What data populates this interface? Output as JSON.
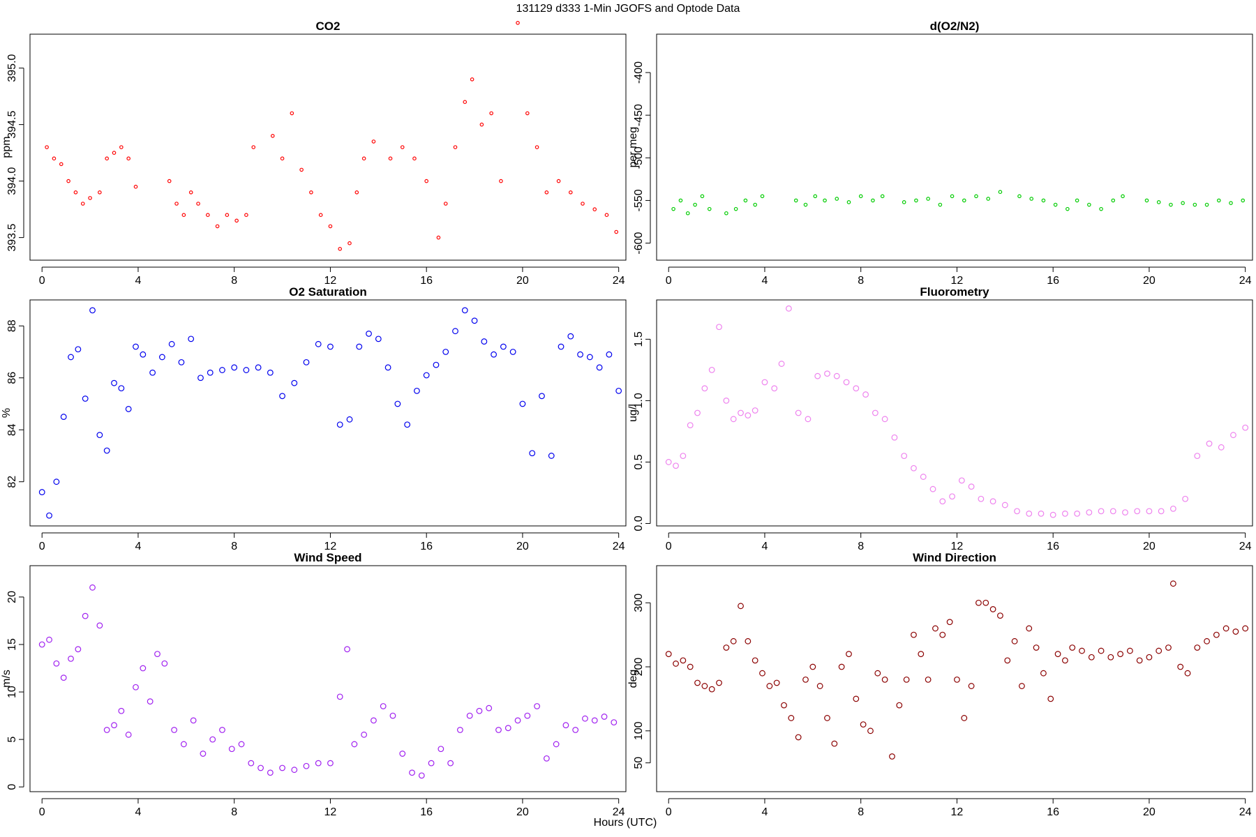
{
  "figure": {
    "title": "131129   d333   1-Min  JGOFS and Optode Data",
    "x_axis_title": "Hours (UTC)"
  },
  "chart_data": [
    {
      "type": "scatter",
      "title": "CO2",
      "xlabel": "",
      "ylabel": "ppm",
      "color": "#ff0000",
      "marker": "small-circle",
      "xlim": [
        -0.5,
        24.3
      ],
      "ylim": [
        393.3,
        395.3
      ],
      "xticks": [
        0,
        4,
        8,
        12,
        16,
        20,
        24
      ],
      "yticks": [
        393.5,
        394.0,
        394.5,
        395.0
      ],
      "ytick_labels": [
        "393.5",
        "394.0",
        "394.5",
        "395.0"
      ],
      "series": [
        {
          "name": "CO2",
          "x": [
            0.2,
            0.5,
            0.8,
            1.1,
            1.4,
            1.7,
            2.0,
            2.4,
            2.7,
            3.0,
            3.3,
            3.6,
            3.9,
            5.3,
            5.6,
            5.9,
            6.2,
            6.5,
            6.9,
            7.3,
            7.7,
            8.1,
            8.5,
            8.8,
            9.6,
            10.0,
            10.4,
            10.8,
            11.2,
            11.6,
            12.0,
            12.4,
            12.8,
            13.1,
            13.4,
            13.8,
            14.5,
            15.0,
            15.5,
            16.0,
            16.5,
            16.8,
            17.2,
            17.6,
            17.9,
            18.3,
            18.7,
            19.1,
            19.8,
            20.2,
            20.6,
            21.0,
            21.5,
            22.0,
            22.5,
            23.0,
            23.5,
            23.9
          ],
          "y": [
            394.3,
            394.2,
            394.15,
            394.0,
            393.9,
            393.8,
            393.85,
            393.9,
            394.2,
            394.25,
            394.3,
            394.2,
            393.95,
            394.0,
            393.8,
            393.7,
            393.9,
            393.8,
            393.7,
            393.6,
            393.7,
            393.65,
            393.7,
            394.3,
            394.4,
            394.2,
            394.6,
            394.1,
            393.9,
            393.7,
            393.6,
            393.4,
            393.45,
            393.9,
            394.2,
            394.35,
            394.2,
            394.3,
            394.2,
            394.0,
            393.5,
            393.8,
            394.3,
            394.7,
            394.9,
            394.5,
            394.6,
            394.0,
            395.4,
            394.6,
            394.3,
            393.9,
            394.0,
            393.9,
            393.8,
            393.75,
            393.7,
            393.55
          ]
        }
      ]
    },
    {
      "type": "scatter",
      "title": "d(O2/N2)",
      "xlabel": "",
      "ylabel": "per meg",
      "color": "#00cc00",
      "marker": "small-circle",
      "xlim": [
        -0.5,
        24.3
      ],
      "ylim": [
        -620,
        -355
      ],
      "xticks": [
        0,
        4,
        8,
        12,
        16,
        20,
        24
      ],
      "yticks": [
        -600,
        -550,
        -500,
        -450,
        -400
      ],
      "ytick_labels": [
        "-600",
        "-550",
        "-500",
        "-450",
        "-400"
      ],
      "series": [
        {
          "name": "d(O2/N2)",
          "x": [
            0.2,
            0.5,
            0.8,
            1.1,
            1.4,
            1.7,
            2.4,
            2.8,
            3.2,
            3.6,
            3.9,
            5.3,
            5.7,
            6.1,
            6.5,
            7.0,
            7.5,
            8.0,
            8.5,
            8.9,
            9.8,
            10.3,
            10.8,
            11.3,
            11.8,
            12.3,
            12.8,
            13.3,
            13.8,
            14.6,
            15.1,
            15.6,
            16.1,
            16.6,
            17.0,
            17.5,
            18.0,
            18.5,
            18.9,
            19.9,
            20.4,
            20.9,
            21.4,
            21.9,
            22.4,
            22.9,
            23.4,
            23.9
          ],
          "y": [
            -560,
            -550,
            -565,
            -555,
            -545,
            -560,
            -565,
            -560,
            -550,
            -555,
            -545,
            -550,
            -555,
            -545,
            -550,
            -548,
            -552,
            -545,
            -550,
            -545,
            -552,
            -550,
            -548,
            -555,
            -545,
            -550,
            -545,
            -548,
            -540,
            -545,
            -548,
            -550,
            -555,
            -560,
            -550,
            -555,
            -560,
            -550,
            -545,
            -550,
            -552,
            -555,
            -553,
            -555,
            -555,
            -550,
            -553,
            -550
          ]
        }
      ]
    },
    {
      "type": "scatter",
      "title": "O2 Saturation",
      "xlabel": "",
      "ylabel": "%",
      "color": "#0000ee",
      "marker": "circle",
      "xlim": [
        -0.5,
        24.3
      ],
      "ylim": [
        80.3,
        89.0
      ],
      "xticks": [
        0,
        4,
        8,
        12,
        16,
        20,
        24
      ],
      "yticks": [
        82,
        84,
        86,
        88
      ],
      "ytick_labels": [
        "82",
        "84",
        "86",
        "88"
      ],
      "series": [
        {
          "name": "O2 Saturation",
          "x": [
            0.0,
            0.3,
            0.6,
            0.9,
            1.2,
            1.5,
            1.8,
            2.1,
            2.4,
            2.7,
            3.0,
            3.3,
            3.6,
            3.9,
            4.2,
            4.6,
            5.0,
            5.4,
            5.8,
            6.2,
            6.6,
            7.0,
            7.5,
            8.0,
            8.5,
            9.0,
            9.5,
            10.0,
            10.5,
            11.0,
            11.5,
            12.0,
            12.4,
            12.8,
            13.2,
            13.6,
            14.0,
            14.4,
            14.8,
            15.2,
            15.6,
            16.0,
            16.4,
            16.8,
            17.2,
            17.6,
            18.0,
            18.4,
            18.8,
            19.2,
            19.6,
            20.0,
            20.4,
            20.8,
            21.2,
            21.6,
            22.0,
            22.4,
            22.8,
            23.2,
            23.6,
            24.0
          ],
          "y": [
            81.6,
            80.7,
            82.0,
            84.5,
            86.8,
            87.1,
            85.2,
            88.6,
            83.8,
            83.2,
            85.8,
            85.6,
            84.8,
            87.2,
            86.9,
            86.2,
            86.8,
            87.3,
            86.6,
            87.5,
            86.0,
            86.2,
            86.3,
            86.4,
            86.3,
            86.4,
            86.2,
            85.3,
            85.8,
            86.6,
            87.3,
            87.2,
            84.2,
            84.4,
            87.2,
            87.7,
            87.5,
            86.4,
            85.0,
            84.2,
            85.5,
            86.1,
            86.5,
            87.0,
            87.8,
            88.6,
            88.2,
            87.4,
            86.9,
            87.2,
            87.0,
            85.0,
            83.1,
            85.3,
            83.0,
            87.2,
            87.6,
            86.9,
            86.8,
            86.4,
            86.9,
            85.5
          ]
        }
      ]
    },
    {
      "type": "scatter",
      "title": "Fluorometry",
      "xlabel": "",
      "ylabel": "ug/l",
      "color": "#ee82ee",
      "marker": "circle",
      "xlim": [
        -0.5,
        24.3
      ],
      "ylim": [
        -0.02,
        1.82
      ],
      "xticks": [
        0,
        4,
        8,
        12,
        16,
        20,
        24
      ],
      "yticks": [
        0.0,
        0.5,
        1.0,
        1.5
      ],
      "ytick_labels": [
        "0.0",
        "0.5",
        "1.0",
        "1.5"
      ],
      "series": [
        {
          "name": "Fluorometry",
          "x": [
            0.0,
            0.3,
            0.6,
            0.9,
            1.2,
            1.5,
            1.8,
            2.1,
            2.4,
            2.7,
            3.0,
            3.3,
            3.6,
            4.0,
            4.4,
            4.7,
            5.0,
            5.4,
            5.8,
            6.2,
            6.6,
            7.0,
            7.4,
            7.8,
            8.2,
            8.6,
            9.0,
            9.4,
            9.8,
            10.2,
            10.6,
            11.0,
            11.4,
            11.8,
            12.2,
            12.6,
            13.0,
            13.5,
            14.0,
            14.5,
            15.0,
            15.5,
            16.0,
            16.5,
            17.0,
            17.5,
            18.0,
            18.5,
            19.0,
            19.5,
            20.0,
            20.5,
            21.0,
            21.5,
            22.0,
            22.5,
            23.0,
            23.5,
            24.0
          ],
          "y": [
            0.5,
            0.47,
            0.55,
            0.8,
            0.9,
            1.1,
            1.25,
            1.6,
            1.0,
            0.85,
            0.9,
            0.88,
            0.92,
            1.15,
            1.1,
            1.3,
            1.75,
            0.9,
            0.85,
            1.2,
            1.22,
            1.2,
            1.15,
            1.1,
            1.05,
            0.9,
            0.85,
            0.7,
            0.55,
            0.45,
            0.38,
            0.28,
            0.18,
            0.22,
            0.35,
            0.3,
            0.2,
            0.18,
            0.15,
            0.1,
            0.08,
            0.08,
            0.07,
            0.08,
            0.08,
            0.09,
            0.1,
            0.1,
            0.09,
            0.1,
            0.1,
            0.1,
            0.12,
            0.2,
            0.55,
            0.65,
            0.62,
            0.72,
            0.78
          ]
        }
      ]
    },
    {
      "type": "scatter",
      "title": "Wind Speed",
      "xlabel": "",
      "ylabel": "m/s",
      "color": "#a020f0",
      "marker": "circle",
      "xlim": [
        -0.5,
        24.3
      ],
      "ylim": [
        -0.5,
        23.3
      ],
      "xticks": [
        0,
        4,
        8,
        12,
        16,
        20,
        24
      ],
      "yticks": [
        0,
        5,
        10,
        15,
        20
      ],
      "ytick_labels": [
        "0",
        "5",
        "10",
        "15",
        "20"
      ],
      "series": [
        {
          "name": "Wind Speed",
          "x": [
            0.0,
            0.3,
            0.6,
            0.9,
            1.2,
            1.5,
            1.8,
            2.1,
            2.4,
            2.7,
            3.0,
            3.3,
            3.6,
            3.9,
            4.2,
            4.5,
            4.8,
            5.1,
            5.5,
            5.9,
            6.3,
            6.7,
            7.1,
            7.5,
            7.9,
            8.3,
            8.7,
            9.1,
            9.5,
            10.0,
            10.5,
            11.0,
            11.5,
            12.0,
            12.4,
            12.7,
            13.0,
            13.4,
            13.8,
            14.2,
            14.6,
            15.0,
            15.4,
            15.8,
            16.2,
            16.6,
            17.0,
            17.4,
            17.8,
            18.2,
            18.6,
            19.0,
            19.4,
            19.8,
            20.2,
            20.6,
            21.0,
            21.4,
            21.8,
            22.2,
            22.6,
            23.0,
            23.4,
            23.8
          ],
          "y": [
            15.0,
            15.5,
            13.0,
            11.5,
            13.5,
            14.5,
            18.0,
            21.0,
            17.0,
            6.0,
            6.5,
            8.0,
            5.5,
            10.5,
            12.5,
            9.0,
            14.0,
            13.0,
            6.0,
            4.5,
            7.0,
            3.5,
            5.0,
            6.0,
            4.0,
            4.5,
            2.5,
            2.0,
            1.5,
            2.0,
            1.8,
            2.2,
            2.5,
            2.5,
            9.5,
            14.5,
            4.5,
            5.5,
            7.0,
            8.5,
            7.5,
            3.5,
            1.5,
            1.2,
            2.5,
            4.0,
            2.5,
            6.0,
            7.5,
            8.0,
            8.3,
            6.0,
            6.2,
            7.0,
            7.5,
            8.5,
            3.0,
            4.5,
            6.5,
            6.0,
            7.2,
            7.0,
            7.4,
            6.8
          ]
        }
      ]
    },
    {
      "type": "scatter",
      "title": "Wind Direction",
      "xlabel": "",
      "ylabel": "deg",
      "color": "#8b0000",
      "marker": "circle",
      "xlim": [
        -0.5,
        24.3
      ],
      "ylim": [
        5,
        358
      ],
      "xticks": [
        0,
        4,
        8,
        12,
        16,
        20,
        24
      ],
      "yticks": [
        50,
        100,
        200,
        300
      ],
      "ytick_labels": [
        "50",
        "100",
        "200",
        "300"
      ],
      "series": [
        {
          "name": "Wind Direction",
          "x": [
            0.0,
            0.3,
            0.6,
            0.9,
            1.2,
            1.5,
            1.8,
            2.1,
            2.4,
            2.7,
            3.0,
            3.3,
            3.6,
            3.9,
            4.2,
            4.5,
            4.8,
            5.1,
            5.4,
            5.7,
            6.0,
            6.3,
            6.6,
            6.9,
            7.2,
            7.5,
            7.8,
            8.1,
            8.4,
            8.7,
            9.0,
            9.3,
            9.6,
            9.9,
            10.2,
            10.5,
            10.8,
            11.1,
            11.4,
            11.7,
            12.0,
            12.3,
            12.6,
            12.9,
            13.2,
            13.5,
            13.8,
            14.1,
            14.4,
            14.7,
            15.0,
            15.3,
            15.6,
            15.9,
            16.2,
            16.5,
            16.8,
            17.2,
            17.6,
            18.0,
            18.4,
            18.8,
            19.2,
            19.6,
            20.0,
            20.4,
            20.8,
            21.0,
            21.3,
            21.6,
            22.0,
            22.4,
            22.8,
            23.2,
            23.6,
            24.0
          ],
          "y": [
            220,
            205,
            210,
            200,
            175,
            170,
            165,
            175,
            230,
            240,
            295,
            240,
            210,
            190,
            170,
            175,
            140,
            120,
            90,
            180,
            200,
            170,
            120,
            80,
            200,
            220,
            150,
            110,
            100,
            190,
            180,
            60,
            140,
            180,
            250,
            220,
            180,
            260,
            250,
            270,
            180,
            120,
            170,
            300,
            300,
            290,
            280,
            210,
            240,
            170,
            260,
            230,
            190,
            150,
            220,
            210,
            230,
            225,
            215,
            225,
            215,
            220,
            225,
            210,
            215,
            225,
            230,
            330,
            200,
            190,
            230,
            240,
            250,
            260,
            255,
            260
          ]
        }
      ]
    }
  ]
}
